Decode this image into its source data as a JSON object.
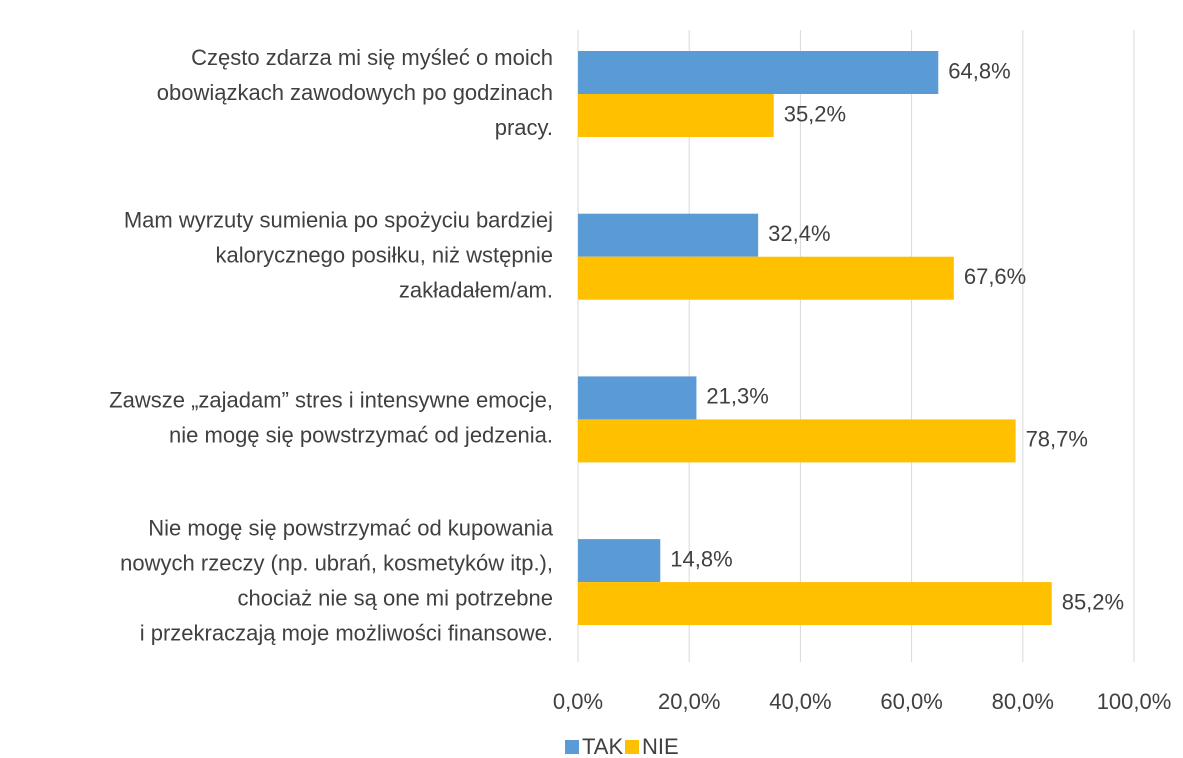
{
  "chart_data": {
    "type": "bar",
    "orientation": "horizontal",
    "categories": [
      [
        "Często zdarza mi się myśleć o moich",
        "obowiązkach zawodowych po godzinach",
        "pracy."
      ],
      [
        "Mam wyrzuty sumienia po spożyciu bardziej",
        "kalorycznego posiłku, niż wstępnie",
        "zakładałem/am."
      ],
      [
        "Zawsze „zajadam” stres i intensywne emocje,",
        "nie mogę się powstrzymać od jedzenia."
      ],
      [
        "Nie mogę się powstrzymać od kupowania",
        "nowych rzeczy (np. ubrań, kosmetyków itp.),",
        "chociaż nie są one mi potrzebne",
        "i przekraczają moje możliwości finansowe."
      ]
    ],
    "series": [
      {
        "name": "TAK",
        "color": "#5b9bd5",
        "values": [
          64.8,
          32.4,
          21.3,
          14.8
        ],
        "value_labels": [
          "64,8%",
          "32,4%",
          "21,3%",
          "14,8%"
        ]
      },
      {
        "name": "NIE",
        "color": "#ffc000",
        "values": [
          35.2,
          67.6,
          78.7,
          85.2
        ],
        "value_labels": [
          "35,2%",
          "67,6%",
          "78,7%",
          "85,2%"
        ]
      }
    ],
    "xlim": [
      0,
      100
    ],
    "xticks": [
      {
        "value": 0,
        "label": "0,0%"
      },
      {
        "value": 20,
        "label": "20,0%"
      },
      {
        "value": 40,
        "label": "40,0%"
      },
      {
        "value": 60,
        "label": "60,0%"
      },
      {
        "value": 80,
        "label": "80,0%"
      },
      {
        "value": 100,
        "label": "100,0%"
      }
    ],
    "grid": true,
    "legend": "bottom"
  }
}
